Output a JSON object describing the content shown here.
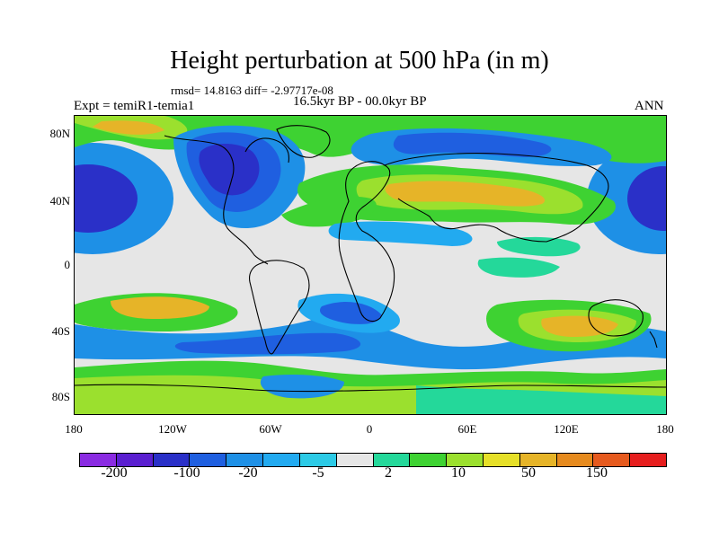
{
  "header": {
    "title": "Height perturbation at 500 hPa (in m)",
    "stats": "rmsd= 14.8163 diff= -2.97717e-08",
    "experiment": "Expt = temiR1-temia1",
    "period": "16.5kyr BP - 00.0kyr BP",
    "season": "ANN"
  },
  "axes": {
    "lat_labels": [
      "80N",
      "40N",
      "0",
      "40S",
      "80S"
    ],
    "lon_labels": [
      "180",
      "120W",
      "60W",
      "0",
      "60E",
      "120E",
      "180"
    ]
  },
  "colorbar": {
    "colors": [
      "#8a2be2",
      "#5a1fd0",
      "#2a30c8",
      "#1f5fe0",
      "#1e90e6",
      "#22aaf0",
      "#2ccae6",
      "#e6e6e6",
      "#24d89a",
      "#3ed232",
      "#9be02e",
      "#e6e028",
      "#e6b428",
      "#e68a1e",
      "#e65a1e",
      "#e61e1e"
    ],
    "labels": [
      "-200",
      "-100",
      "-20",
      "-5",
      "2",
      "10",
      "50",
      "150"
    ]
  },
  "map": {
    "colors": {
      "neutral": "#e6e6e6",
      "blue_deep": "#2a30c8",
      "blue_mid": "#1f5fe0",
      "blue_light": "#1e90e6",
      "cyan": "#2ccae6",
      "teal": "#24d89a",
      "green": "#3ed232",
      "lime": "#9be02e",
      "yellow": "#e6b428",
      "orange": "#e68a1e",
      "coast": "#000000"
    }
  }
}
